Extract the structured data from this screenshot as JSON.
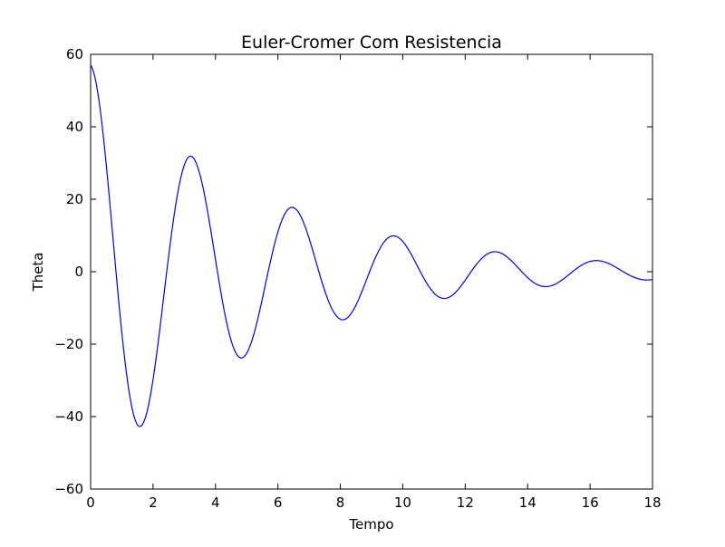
{
  "chart_data": {
    "type": "line",
    "title": "Euler-Cromer Com Resistencia",
    "xlabel": "Tempo",
    "ylabel": "Theta",
    "xlim": [
      0,
      18
    ],
    "ylim": [
      -60,
      60
    ],
    "x_ticks": [
      0,
      2,
      4,
      6,
      8,
      10,
      12,
      14,
      16,
      18
    ],
    "y_ticks": [
      -60,
      -40,
      -20,
      0,
      20,
      40,
      60
    ],
    "x_tick_labels": [
      "0",
      "2",
      "4",
      "6",
      "8",
      "10",
      "12",
      "14",
      "16",
      "18"
    ],
    "y_tick_labels": [
      "−60",
      "−40",
      "−20",
      "0",
      "20",
      "40",
      "60"
    ],
    "grid": false,
    "legend": "none",
    "line_color": "#0000ff",
    "series": [
      {
        "model": "damped_cosine",
        "x_start": 0,
        "x_end": 18,
        "amplitude_deg": 57,
        "damping_per_unit_time": 0.18,
        "period": 3.25
      }
    ],
    "extrema": [
      {
        "x": 0.0,
        "y": 57.3
      },
      {
        "x": 1.5,
        "y": -44.5
      },
      {
        "x": 3.1,
        "y": 33.2
      },
      {
        "x": 4.75,
        "y": -24.7
      },
      {
        "x": 6.4,
        "y": 18.3
      },
      {
        "x": 8.05,
        "y": -13.5
      },
      {
        "x": 9.65,
        "y": 10.0
      },
      {
        "x": 11.3,
        "y": -7.4
      },
      {
        "x": 12.9,
        "y": 5.5
      },
      {
        "x": 14.55,
        "y": -4.0
      },
      {
        "x": 16.2,
        "y": 3.0
      },
      {
        "x": 17.9,
        "y": -2.3
      }
    ]
  }
}
